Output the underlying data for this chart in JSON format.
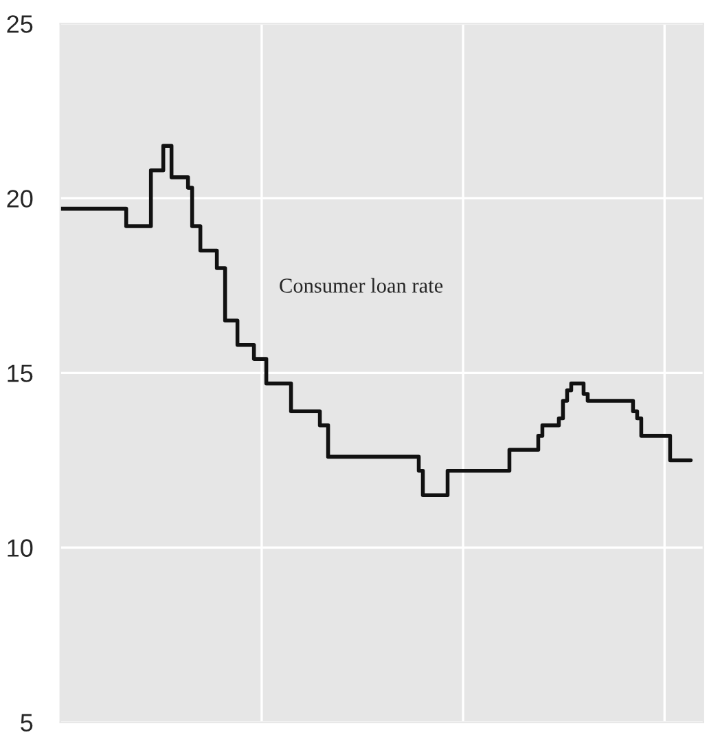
{
  "chart_data": {
    "type": "step",
    "annotations": [
      "Consumer loan rate"
    ],
    "categories": [
      null,
      null,
      null,
      null,
      null,
      null,
      null,
      null,
      null,
      null,
      null,
      null,
      null,
      null,
      null,
      null,
      null,
      null,
      null,
      null,
      null,
      null,
      null,
      null,
      null,
      null,
      null,
      null,
      null,
      null,
      null,
      null,
      null,
      null,
      null,
      null,
      null,
      null,
      null,
      null,
      null,
      null,
      null,
      null,
      null,
      null,
      null,
      null,
      null,
      null,
      null,
      null,
      null,
      null,
      null,
      null,
      null,
      null,
      null,
      null,
      null,
      null,
      null,
      null,
      null,
      null,
      null,
      null,
      null,
      null,
      null,
      null,
      null,
      null,
      null,
      null,
      null,
      null,
      null,
      null,
      null,
      null,
      null,
      null,
      null,
      null,
      null,
      null,
      null,
      null,
      null,
      null,
      null,
      null,
      null,
      null,
      null,
      null,
      null,
      null,
      null,
      null,
      null,
      null,
      null,
      null,
      null,
      null,
      null,
      null,
      null,
      null,
      null,
      null,
      null,
      null,
      null,
      null,
      null,
      null,
      null,
      null,
      null,
      null,
      null,
      null,
      null,
      null,
      null,
      null,
      null,
      null,
      null,
      null,
      null,
      null,
      null,
      null,
      null,
      null,
      null,
      null,
      null,
      null,
      null,
      null,
      null,
      null,
      null,
      null,
      null,
      null,
      null,
      null
    ],
    "series": [
      {
        "color": "#111111",
        "values": [
          19.7,
          19.7,
          19.7,
          19.7,
          19.7,
          19.7,
          19.7,
          19.7,
          19.7,
          19.7,
          19.7,
          19.7,
          19.7,
          19.7,
          19.7,
          19.7,
          19.2,
          19.2,
          19.2,
          19.2,
          19.2,
          19.2,
          20.8,
          20.8,
          20.8,
          21.5,
          21.5,
          20.6,
          20.6,
          20.6,
          20.6,
          20.3,
          19.2,
          19.2,
          18.5,
          18.5,
          18.5,
          18.5,
          18.0,
          18.0,
          16.5,
          16.5,
          16.5,
          15.8,
          15.8,
          15.8,
          15.8,
          15.4,
          15.4,
          15.4,
          14.7,
          14.7,
          14.7,
          14.7,
          14.7,
          14.7,
          13.9,
          13.9,
          13.9,
          13.9,
          13.9,
          13.9,
          13.9,
          13.5,
          13.5,
          12.6,
          12.6,
          12.6,
          12.6,
          12.6,
          12.6,
          12.6,
          12.6,
          12.6,
          12.6,
          12.6,
          12.6,
          12.6,
          12.6,
          12.6,
          12.6,
          12.6,
          12.6,
          12.6,
          12.6,
          12.6,
          12.6,
          12.2,
          11.5,
          11.5,
          11.5,
          11.5,
          11.5,
          11.5,
          12.2,
          12.2,
          12.2,
          12.2,
          12.2,
          12.2,
          12.2,
          12.2,
          12.2,
          12.2,
          12.2,
          12.2,
          12.2,
          12.2,
          12.2,
          12.8,
          12.8,
          12.8,
          12.8,
          12.8,
          12.8,
          12.8,
          13.2,
          13.5,
          13.5,
          13.5,
          13.5,
          13.7,
          14.2,
          14.5,
          14.7,
          14.7,
          14.7,
          14.4,
          14.2,
          14.2,
          14.2,
          14.2,
          14.2,
          14.2,
          14.2,
          14.2,
          14.2,
          14.2,
          14.2,
          13.9,
          13.7,
          13.2,
          13.2,
          13.2,
          13.2,
          13.2,
          13.2,
          13.2,
          12.5,
          12.5,
          12.5,
          12.5,
          12.5,
          12.5
        ]
      }
    ],
    "ylim": [
      5,
      25
    ],
    "yticks": [
      5,
      10,
      15,
      20,
      25
    ],
    "grid": true,
    "tick_labels": "y",
    "line_style": "solid"
  }
}
